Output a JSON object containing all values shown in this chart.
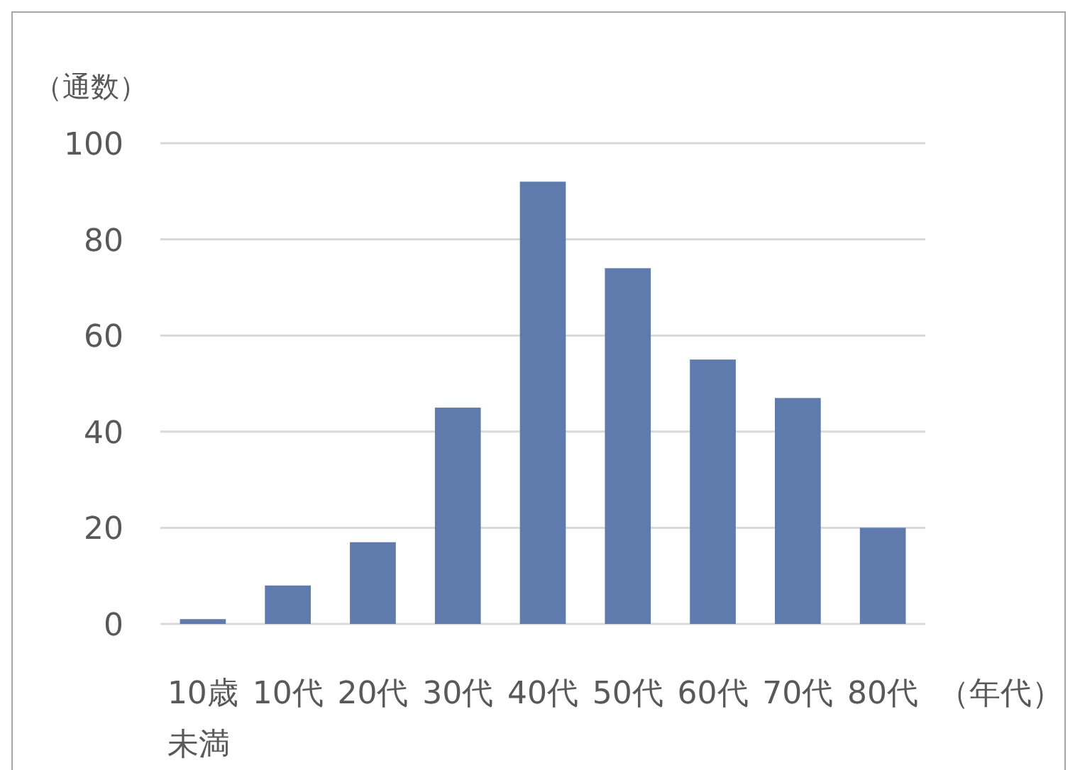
{
  "chart_data": {
    "type": "bar",
    "ylabel": "（通数）",
    "xlabel": "（年代）",
    "categories": [
      "10歳未満",
      "10代",
      "20代",
      "30代",
      "40代",
      "50代",
      "60代",
      "70代",
      "80代"
    ],
    "values": [
      1,
      8,
      17,
      45,
      92,
      74,
      55,
      47,
      20
    ],
    "color": "#5f7aad",
    "ylim": [
      0,
      100
    ],
    "yticks": [
      0,
      20,
      40,
      60,
      80,
      100
    ],
    "grid": "y"
  }
}
